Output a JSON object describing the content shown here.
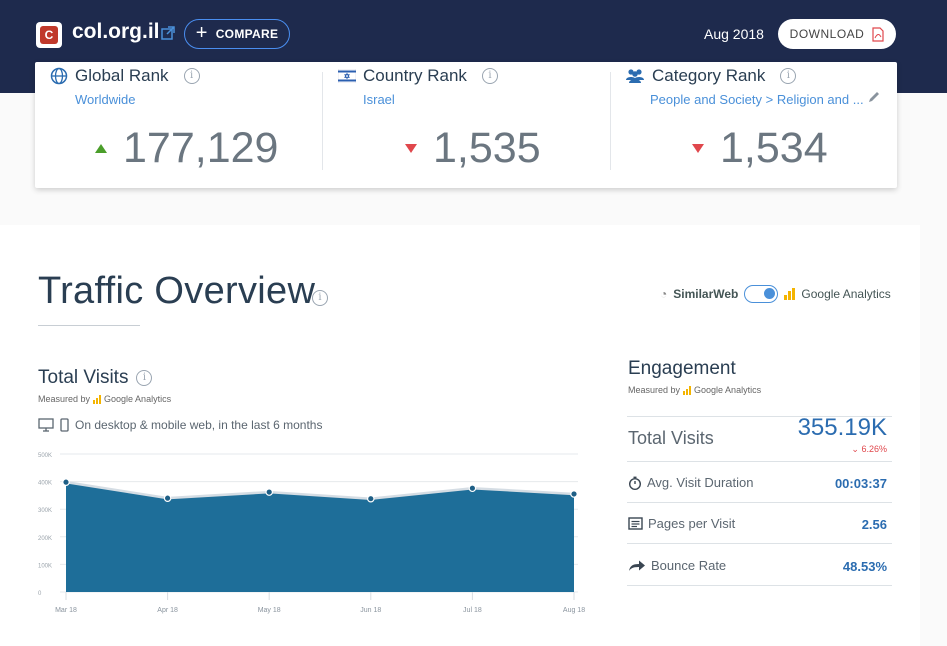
{
  "header": {
    "site_name": "col.org.il",
    "compare_label": "COMPARE",
    "date": "Aug 2018",
    "download_label": "DOWNLOAD"
  },
  "ranks": {
    "global": {
      "title": "Global Rank",
      "sub": "Worldwide",
      "value": "177,129",
      "trend": "up"
    },
    "country": {
      "title": "Country Rank",
      "sub": "Israel",
      "value": "1,535",
      "trend": "down"
    },
    "category": {
      "title": "Category Rank",
      "sub": "People and Society > Religion and ...",
      "value": "1,534",
      "trend": "down"
    }
  },
  "traffic": {
    "title": "Traffic Overview",
    "source_similarweb": "SimilarWeb",
    "source_ga": "Google Analytics",
    "total_visits_title": "Total Visits",
    "measured_by": "Measured by",
    "ga_small": "Google Analytics",
    "device_text": "On desktop & mobile web, in the last 6 months"
  },
  "chart_data": {
    "type": "area",
    "x": [
      "Mar 18",
      "Apr 18",
      "May 18",
      "Jun 18",
      "Jul 18",
      "Aug 18"
    ],
    "y_ticks": [
      "500K",
      "400K",
      "300K",
      "200K",
      "100K",
      "0"
    ],
    "values": [
      398000,
      340000,
      362000,
      338000,
      376000,
      355190
    ],
    "ylim": [
      0,
      500000
    ],
    "color": "#1e6e99"
  },
  "engagement": {
    "title": "Engagement",
    "measured_by": "Measured by",
    "ga_small": "Google Analytics",
    "total_visits_label": "Total Visits",
    "total_visits_value": "355.19K",
    "total_visits_change": "6.26%",
    "rows": [
      {
        "label": "Avg. Visit Duration",
        "value": "00:03:37"
      },
      {
        "label": "Pages per Visit",
        "value": "2.56"
      },
      {
        "label": "Bounce Rate",
        "value": "48.53%"
      }
    ]
  }
}
